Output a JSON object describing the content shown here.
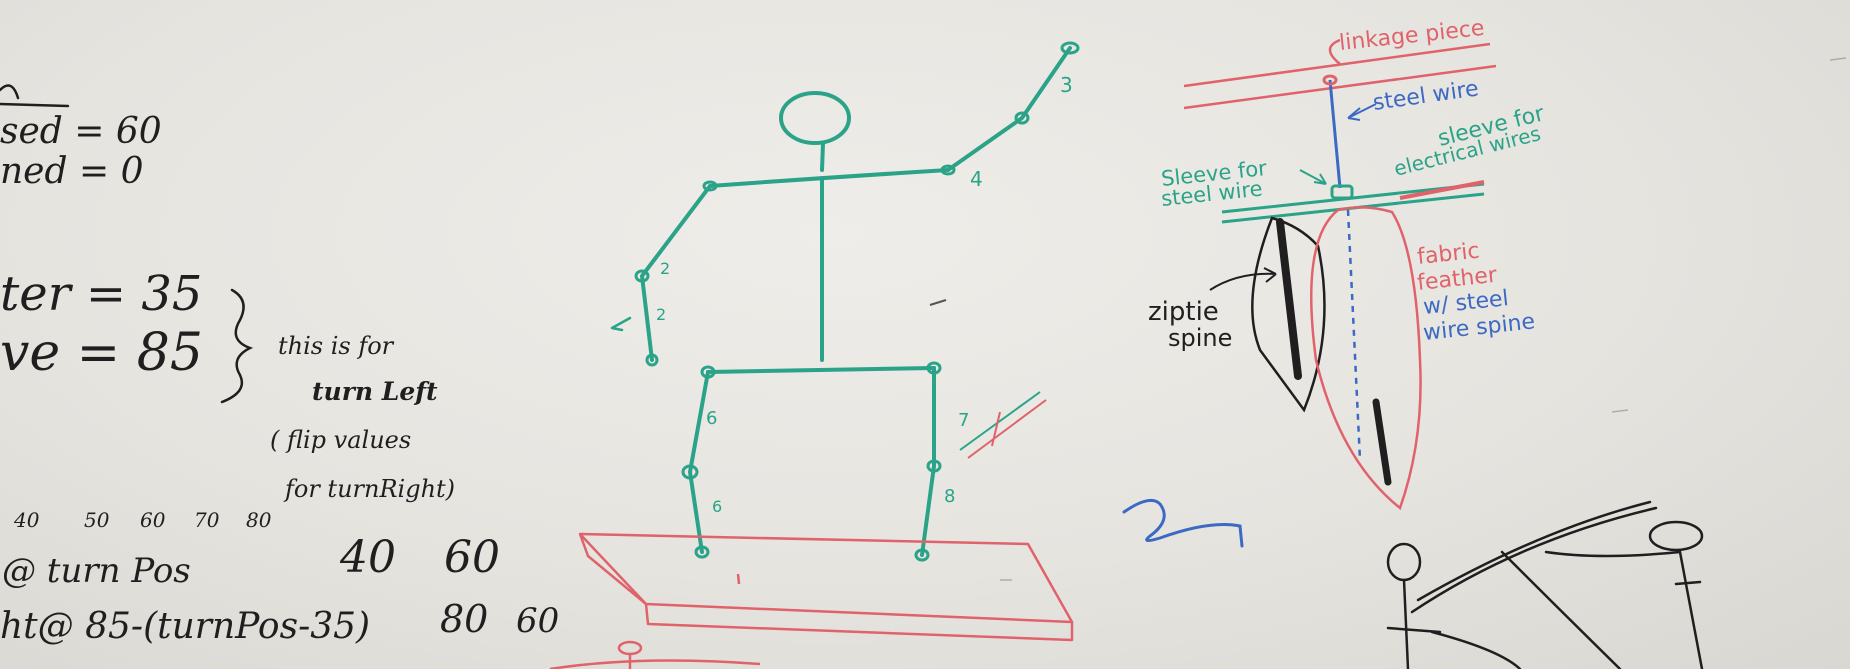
{
  "photo": "whiteboard sketch",
  "colors": {
    "board": "#e7e5e0",
    "black_marker": "#1f1f1f",
    "green_marker": "#2aa389",
    "red_marker": "#e0626a",
    "blue_marker": "#3c69c4"
  },
  "left_notes": {
    "lines": [
      "sed = 60",
      "ned = 0",
      "ter = 35",
      "ve = 85"
    ],
    "bracket_note": [
      "this is for",
      "turn Left",
      "( flip values",
      "for turnRight)"
    ],
    "scale": [
      "40",
      "50",
      "60",
      "70",
      "80"
    ],
    "row1": {
      "label": "@ turn Pos",
      "v1": "40",
      "v2": "60"
    },
    "row2": {
      "label": "ht@  85-(turnPos-35)",
      "v1": "80",
      "v2": "60"
    }
  },
  "stick_figure": {
    "joint_labels": [
      "3",
      "4",
      "2",
      "2",
      "6",
      "7",
      "6",
      "8"
    ]
  },
  "right_diagram": {
    "title": "linkage piece",
    "labels": {
      "steel_wire": "steel wire",
      "sleeve_steel": [
        "Sleeve for",
        "steel wire"
      ],
      "sleeve_electric": [
        "sleeve for",
        "electrical wires"
      ],
      "ziptie": [
        "ziptie",
        "spine"
      ],
      "fabric": [
        "fabric",
        "feather"
      ],
      "wire_spine": [
        "w/ steel",
        "wire spine"
      ]
    }
  }
}
